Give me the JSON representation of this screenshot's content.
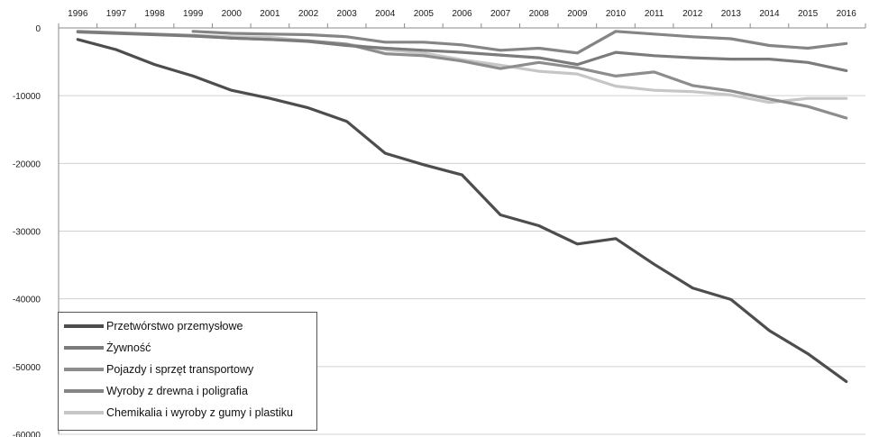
{
  "chart_data": {
    "type": "line",
    "x": [
      "1996",
      "1997",
      "1998",
      "1999",
      "2000",
      "2001",
      "2002",
      "2003",
      "2004",
      "2005",
      "2006",
      "2007",
      "2008",
      "2009",
      "2010",
      "2011",
      "2012",
      "2013",
      "2014",
      "2015",
      "2016"
    ],
    "ylim": [
      -60000,
      0
    ],
    "yticks": [
      0,
      -10000,
      -20000,
      -30000,
      -40000,
      -50000,
      -60000
    ],
    "ytick_labels": [
      "0",
      "-10000",
      "-20000",
      "-30000",
      "-40000",
      "-50000",
      "-60000"
    ],
    "grid": true,
    "x_axis_position": "top",
    "legend_position": "bottom-left",
    "series": [
      {
        "name": "Przetwórstwo przemysłowe",
        "color": "#4d4d4d",
        "values": [
          -1700,
          -3200,
          -5400,
          -7100,
          -9200,
          -10400,
          -11800,
          -13800,
          -18500,
          -20200,
          -21700,
          -27600,
          -29200,
          -31900,
          -31100,
          -34900,
          -38400,
          -40100,
          -44700,
          -48100,
          -52200
        ]
      },
      {
        "name": "Żywność",
        "color": "#7b7b7b",
        "values": [
          -600,
          -800,
          -1000,
          -1200,
          -1500,
          -1700,
          -2000,
          -2600,
          -3000,
          -3300,
          -3600,
          -4000,
          -4400,
          -5400,
          -3600,
          -4100,
          -4400,
          -4600,
          -4600,
          -5100,
          -6300
        ]
      },
      {
        "name": "Pojazdy i sprzęt transportowy",
        "color": "#8d8d8d",
        "values": [
          -500,
          -700,
          -900,
          -1100,
          -1500,
          -1700,
          -1900,
          -2400,
          -3800,
          -4100,
          -4900,
          -6000,
          -5100,
          -5900,
          -7100,
          -6500,
          -8500,
          -9300,
          -10500,
          -11600,
          -13300
        ]
      },
      {
        "name": "Wyroby z drewna i poligrafia",
        "color": "#858585",
        "values": [
          null,
          null,
          null,
          -500,
          -800,
          -900,
          -1000,
          -1300,
          -2100,
          -2100,
          -2500,
          -3300,
          -3000,
          -3700,
          -500,
          -900,
          -1300,
          -1600,
          -2600,
          -3000,
          -2300
        ]
      },
      {
        "name": "Chemikalia i wyroby z gumy i plastiku",
        "color": "#c6c6c6",
        "values": [
          null,
          null,
          null,
          -1100,
          -1300,
          -1400,
          -1900,
          -2400,
          -3200,
          -3700,
          -4700,
          -5500,
          -6400,
          -6800,
          -8600,
          -9200,
          -9400,
          -9900,
          -11000,
          -10400,
          -10400
        ]
      }
    ]
  }
}
